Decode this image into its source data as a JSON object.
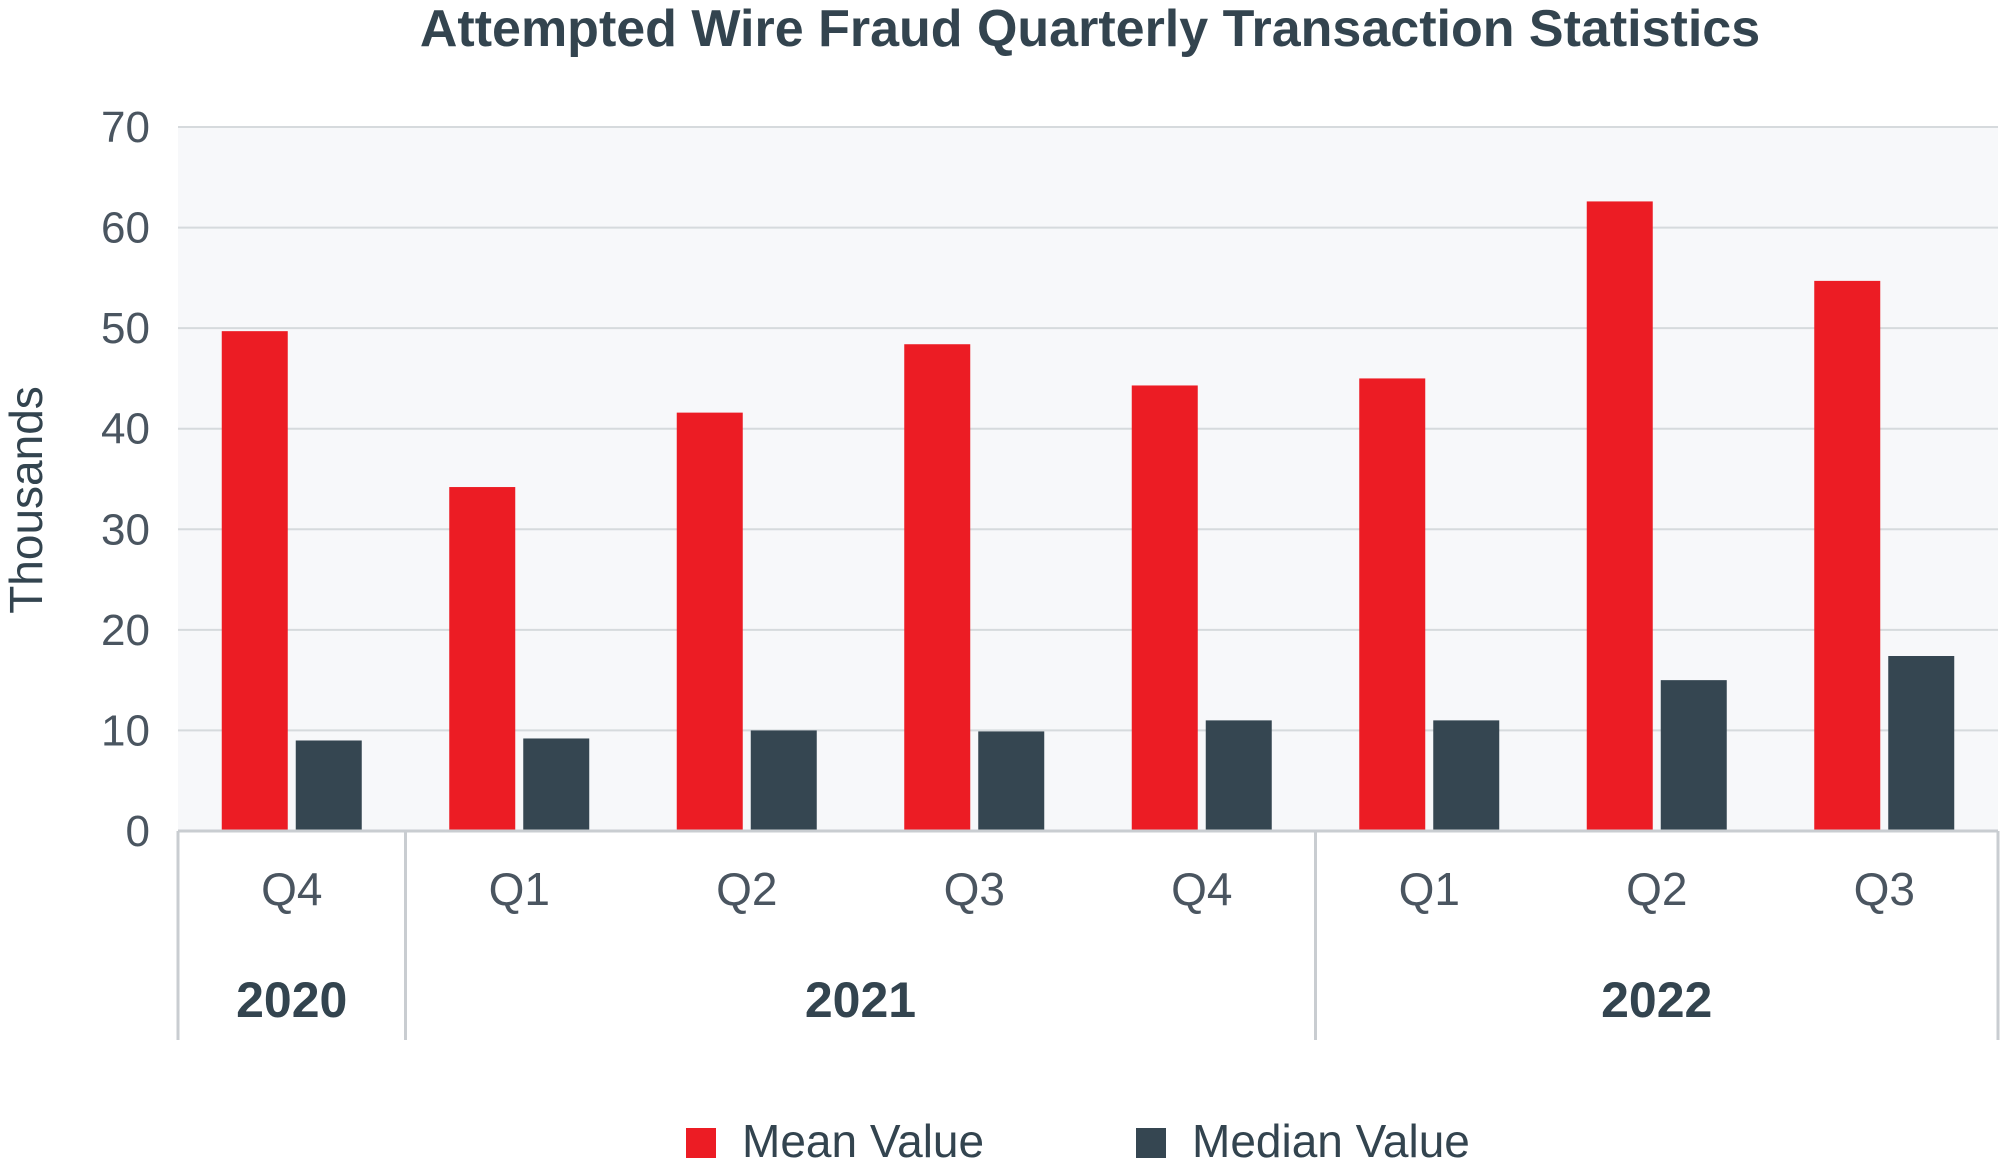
{
  "chart_data": {
    "type": "bar",
    "title": "Attempted Wire Fraud Quarterly Transaction Statistics",
    "ylabel": "Thousands",
    "ylim": [
      0,
      70
    ],
    "yticks": [
      0,
      10,
      20,
      30,
      40,
      50,
      60,
      70
    ],
    "grid": true,
    "legend_position": "bottom",
    "categories": [
      "Q4",
      "Q1",
      "Q2",
      "Q3",
      "Q4",
      "Q1",
      "Q2",
      "Q3"
    ],
    "groups": [
      {
        "label": "2020",
        "span": 1
      },
      {
        "label": "2021",
        "span": 4
      },
      {
        "label": "2022",
        "span": 3
      }
    ],
    "series": [
      {
        "name": "Mean Value",
        "color": "#ec1c24",
        "values": [
          49.7,
          34.2,
          41.6,
          48.4,
          44.3,
          45.0,
          62.6,
          54.7
        ]
      },
      {
        "name": "Median Value",
        "color": "#354651",
        "values": [
          9.0,
          9.2,
          10.0,
          9.9,
          11.0,
          11.0,
          15.0,
          17.4
        ]
      }
    ]
  }
}
